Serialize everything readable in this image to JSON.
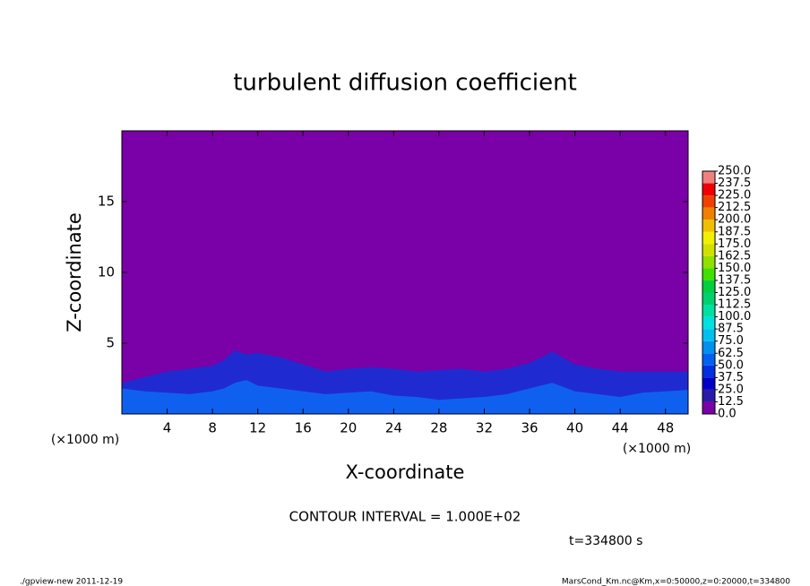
{
  "chart_data": {
    "type": "contour",
    "title": "turbulent diffusion coefficient",
    "x_label": "X-coordinate",
    "y_label": "Z-coordinate",
    "x_unit": "(×1000 m)",
    "y_unit": "(×1000 m)",
    "contour_interval": "CONTOUR INTERVAL = 1.000E+02",
    "time_label": "t=334800 s",
    "footer_left": "./gpview-new  2011-12-19",
    "footer_right": "MarsCond_Km.nc@Km,x=0:50000,z=0:20000,t=334800",
    "background_color": "#7a00a8",
    "xlim": [
      0,
      50
    ],
    "xticks": [
      4,
      8,
      12,
      16,
      20,
      24,
      28,
      32,
      36,
      40,
      44,
      48
    ],
    "ylim": [
      0,
      20
    ],
    "yticks": [
      5,
      10,
      15
    ],
    "x": [
      0,
      2,
      4,
      6,
      8,
      9,
      10,
      11,
      12,
      14,
      16,
      18,
      20,
      22,
      24,
      26,
      28,
      30,
      32,
      34,
      36,
      38,
      40,
      42,
      44,
      46,
      48,
      50
    ],
    "series": [
      {
        "color": "#1f2bd0",
        "values": [
          2.2,
          2.6,
          3.0,
          3.2,
          3.4,
          3.8,
          4.5,
          4.2,
          4.3,
          4.0,
          3.5,
          3.0,
          3.2,
          3.3,
          3.2,
          3.0,
          3.1,
          3.2,
          3.0,
          3.2,
          3.6,
          4.4,
          3.5,
          3.2,
          3.0,
          3.0,
          3.0,
          3.0
        ]
      },
      {
        "color": "#1060f0",
        "values": [
          1.8,
          1.6,
          1.5,
          1.4,
          1.6,
          1.8,
          2.2,
          2.4,
          2.0,
          1.8,
          1.6,
          1.4,
          1.5,
          1.6,
          1.3,
          1.2,
          1.0,
          1.1,
          1.2,
          1.4,
          1.8,
          2.2,
          1.6,
          1.4,
          1.2,
          1.5,
          1.6,
          1.7
        ]
      }
    ],
    "colorbar": {
      "levels": [
        {
          "value": 0,
          "label": "0.0"
        },
        12.5,
        {
          "value": 25,
          "label": "25.0"
        },
        37.5,
        {
          "value": 50,
          "label": "50.0"
        },
        62.5,
        {
          "value": 75,
          "label": "75.0"
        },
        87.5,
        {
          "value": 100,
          "label": "100.0"
        },
        112.5,
        {
          "value": 125,
          "label": "125.0"
        },
        137.5,
        {
          "value": 150,
          "label": "150.0"
        },
        162.5,
        {
          "value": 175,
          "label": "175.0"
        },
        187.5,
        {
          "value": 200,
          "label": "200.0"
        },
        212.5,
        {
          "value": 225,
          "label": "225.0"
        },
        237.5,
        {
          "value": 250,
          "label": "250.0"
        }
      ],
      "colors": [
        "#7a00a8",
        "#2a1aa8",
        "#0000c8",
        "#0030e0",
        "#0060f0",
        "#0090f0",
        "#00c0f0",
        "#00e0e0",
        "#00e0a0",
        "#00d070",
        "#00d040",
        "#40e000",
        "#90e000",
        "#d0e000",
        "#f0f000",
        "#f0c000",
        "#f08000",
        "#f04000",
        "#f00000",
        "#f08080"
      ]
    }
  }
}
